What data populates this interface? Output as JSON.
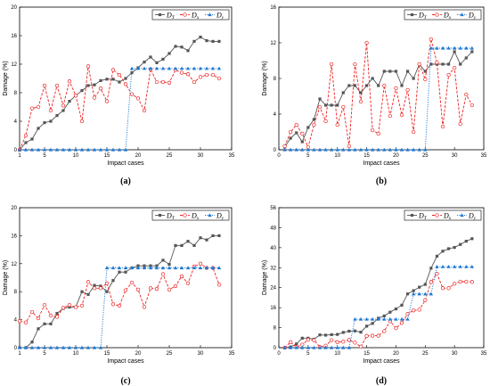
{
  "colors": {
    "DT": "#555555",
    "Dx": "#ee2222",
    "Dy": "#1e78d2"
  },
  "chart_data": [
    {
      "type": "line",
      "panel_label": "(a)",
      "xlabel": "Impact cases",
      "ylabel": "Damage (%)",
      "xlim": [
        1,
        35
      ],
      "ylim": [
        0,
        20
      ],
      "xticks": [
        1,
        5,
        10,
        15,
        20,
        25,
        30,
        35
      ],
      "yticks": [
        0,
        4,
        8,
        12,
        16,
        20
      ],
      "legend_position": "top-right",
      "x": [
        1,
        2,
        3,
        4,
        5,
        6,
        7,
        8,
        9,
        10,
        11,
        12,
        13,
        14,
        15,
        16,
        17,
        18,
        19,
        20,
        21,
        22,
        23,
        24,
        25,
        26,
        27,
        28,
        29,
        30,
        31,
        32,
        33
      ],
      "series": [
        {
          "key": "DT",
          "name": "DT",
          "marker": "square",
          "style": "solid",
          "values": [
            0,
            1,
            1.5,
            3,
            3.8,
            4,
            4.8,
            5.5,
            6.8,
            7.6,
            8.3,
            9,
            9.1,
            9.7,
            9.9,
            9.9,
            9.5,
            10,
            10.8,
            11.5,
            12.3,
            13,
            12.2,
            12.7,
            13.5,
            14.5,
            14.4,
            13.9,
            15.2,
            15.8,
            15.3,
            15.2,
            15.2
          ]
        },
        {
          "key": "Dx",
          "name": "Dx",
          "marker": "circle",
          "style": "dash",
          "values": [
            0,
            2,
            5.8,
            6,
            9,
            5.5,
            9,
            6.2,
            9.6,
            7.6,
            4,
            11.7,
            7.3,
            8.6,
            6.8,
            11.2,
            10.5,
            9.2,
            7.8,
            7.2,
            5.5,
            11.3,
            9.5,
            9.5,
            9.4,
            11.2,
            10.8,
            10.6,
            9.5,
            10.2,
            10.5,
            10.5,
            10
          ]
        },
        {
          "key": "Dy",
          "name": "Dy",
          "marker": "triangle",
          "style": "dot",
          "values": [
            0,
            0,
            0,
            0,
            0,
            0,
            0,
            0,
            0,
            0,
            0,
            0,
            0,
            0,
            0,
            0,
            0,
            0,
            11.4,
            11.4,
            11.4,
            11.4,
            11.4,
            11.4,
            11.4,
            11.4,
            11.4,
            11.4,
            11.4,
            11.4,
            11.4,
            11.4,
            11.4
          ]
        }
      ]
    },
    {
      "type": "line",
      "panel_label": "(b)",
      "xlabel": "Impact cases",
      "ylabel": "Damage (%)",
      "xlim": [
        0,
        35
      ],
      "ylim": [
        0,
        16
      ],
      "xticks": [
        0,
        5,
        10,
        15,
        20,
        25,
        30,
        35
      ],
      "yticks": [
        0,
        4,
        8,
        12,
        16
      ],
      "legend_position": "top-right",
      "x": [
        1,
        2,
        3,
        4,
        5,
        6,
        7,
        8,
        9,
        10,
        11,
        12,
        13,
        14,
        15,
        16,
        17,
        18,
        19,
        20,
        21,
        22,
        23,
        24,
        25,
        26,
        27,
        28,
        29,
        30,
        31,
        32,
        33
      ],
      "series": [
        {
          "key": "DT",
          "name": "DT",
          "marker": "square",
          "style": "solid",
          "values": [
            0.3,
            1.3,
            1.9,
            0.9,
            2.5,
            3.4,
            5.7,
            5,
            5,
            5,
            6.4,
            7.2,
            7.2,
            6.4,
            7.2,
            8,
            7.2,
            8.8,
            8.8,
            8.8,
            7.2,
            8.8,
            8,
            9.6,
            8.8,
            9.6,
            9.6,
            9.6,
            9.6,
            11,
            9.6,
            10.3,
            11
          ]
        },
        {
          "key": "Dx",
          "name": "Dx",
          "marker": "circle",
          "style": "dash",
          "values": [
            0.4,
            2,
            2.8,
            1.8,
            0.3,
            2.8,
            4.8,
            3.2,
            9.6,
            2.8,
            4.8,
            0.4,
            9.6,
            5.4,
            12,
            2.2,
            1.8,
            7.2,
            3.8,
            6.9,
            3.9,
            6.7,
            2,
            9.6,
            7.9,
            12.4,
            9.8,
            2.6,
            8.4,
            9.2,
            2.9,
            6.2,
            5
          ]
        },
        {
          "key": "Dy",
          "name": "Dy",
          "marker": "triangle",
          "style": "dot",
          "values": [
            0,
            0,
            0,
            0,
            0,
            0,
            0,
            0,
            0,
            0,
            0,
            0,
            0,
            0,
            0,
            0,
            0,
            0,
            0,
            0,
            0,
            0,
            0,
            0,
            0,
            11.4,
            11.4,
            11.4,
            11.4,
            11.4,
            11.4,
            11.4,
            11.4
          ]
        }
      ]
    },
    {
      "type": "line",
      "panel_label": "(c)",
      "xlabel": "Impact cases",
      "ylabel": "Damage (%)",
      "xlim": [
        1,
        35
      ],
      "ylim": [
        0,
        20
      ],
      "xticks": [
        1,
        5,
        10,
        15,
        20,
        25,
        30,
        35
      ],
      "yticks": [
        0,
        4,
        8,
        12,
        16,
        20
      ],
      "legend_position": "top-right",
      "x": [
        1,
        2,
        3,
        4,
        5,
        6,
        7,
        8,
        9,
        10,
        11,
        12,
        13,
        14,
        15,
        16,
        17,
        18,
        19,
        20,
        21,
        22,
        23,
        24,
        25,
        26,
        27,
        28,
        29,
        30,
        31,
        32,
        33
      ],
      "series": [
        {
          "key": "DT",
          "name": "DT",
          "marker": "square",
          "style": "solid",
          "values": [
            0,
            0,
            0.8,
            2.7,
            3.4,
            3.4,
            4.9,
            5.6,
            5.8,
            5.8,
            8,
            7.6,
            8.9,
            8.8,
            8,
            9.6,
            10.8,
            10.8,
            11.4,
            11.7,
            11.7,
            11.7,
            11.7,
            12.5,
            11.9,
            14.6,
            14.6,
            15.2,
            14.6,
            15.7,
            15.4,
            16,
            16
          ]
        },
        {
          "key": "Dx",
          "name": "Dx",
          "marker": "circle",
          "style": "dash",
          "values": [
            3.8,
            3.6,
            5.1,
            4.2,
            6.1,
            4.6,
            4.4,
            5.7,
            6.1,
            5.8,
            6,
            9.4,
            8.5,
            8.5,
            9.2,
            6.2,
            6,
            8.2,
            9.3,
            8.3,
            5.8,
            8.5,
            8.4,
            10.5,
            8.3,
            8.8,
            10.2,
            9.2,
            11.6,
            12,
            11.4,
            11.4,
            9
          ]
        },
        {
          "key": "Dy",
          "name": "Dy",
          "marker": "triangle",
          "style": "dot",
          "values": [
            0,
            0,
            0,
            0,
            0,
            0,
            0,
            0,
            0,
            0,
            0,
            0,
            0,
            0,
            11.4,
            11.4,
            11.4,
            11.4,
            11.4,
            11.4,
            11.4,
            11.4,
            11.4,
            11.4,
            11.4,
            11.4,
            11.4,
            11.4,
            11.4,
            11.4,
            11.4,
            11.4,
            11.4
          ]
        }
      ]
    },
    {
      "type": "line",
      "panel_label": "(d)",
      "xlabel": "Impact cases",
      "ylabel": "Damage (%)",
      "xlim": [
        0,
        35
      ],
      "ylim": [
        0,
        56
      ],
      "xticks": [
        0,
        5,
        10,
        15,
        20,
        25,
        30,
        35
      ],
      "yticks": [
        0,
        8,
        16,
        24,
        32,
        40,
        48,
        56
      ],
      "legend_position": "top-right",
      "x": [
        1,
        2,
        3,
        4,
        5,
        6,
        7,
        8,
        9,
        10,
        11,
        12,
        13,
        14,
        15,
        16,
        17,
        18,
        19,
        20,
        21,
        22,
        23,
        24,
        25,
        26,
        27,
        28,
        29,
        30,
        31,
        32,
        33
      ],
      "series": [
        {
          "key": "DT",
          "name": "DT",
          "marker": "square",
          "style": "solid",
          "values": [
            0,
            0.3,
            1.5,
            3.8,
            3.8,
            3.4,
            5.1,
            5,
            5.2,
            5.3,
            6.1,
            6.6,
            6.7,
            6.2,
            8.6,
            9.7,
            11.8,
            12.7,
            14.2,
            15.5,
            17,
            21.5,
            22.8,
            24.2,
            25.3,
            31.8,
            36.6,
            38.6,
            39.6,
            40.1,
            41.3,
            42.6,
            43.6
          ]
        },
        {
          "key": "Dx",
          "name": "Dx",
          "marker": "circle",
          "style": "dash",
          "values": [
            0,
            2.2,
            0.3,
            1.2,
            3.2,
            3,
            0.3,
            0.8,
            3,
            2.2,
            2.4,
            3.1,
            2,
            0.4,
            4.7,
            4.8,
            4.8,
            6.6,
            10.6,
            7.8,
            9.9,
            13.5,
            14.9,
            15.2,
            19,
            26.3,
            29.6,
            23.8,
            23.8,
            25.6,
            26.4,
            26.4,
            26.3
          ]
        },
        {
          "key": "Dy",
          "name": "Dy",
          "marker": "triangle",
          "style": "dot",
          "values": [
            0,
            0,
            0,
            0,
            0,
            0,
            0,
            0,
            0,
            0,
            0,
            0,
            11.4,
            11.4,
            11.4,
            11.4,
            11.4,
            11.4,
            11.4,
            11.4,
            11.4,
            11.4,
            21.5,
            21.5,
            21.5,
            21.5,
            32.4,
            32.4,
            32.4,
            32.4,
            32.4,
            32.4,
            32.4
          ]
        }
      ]
    }
  ]
}
